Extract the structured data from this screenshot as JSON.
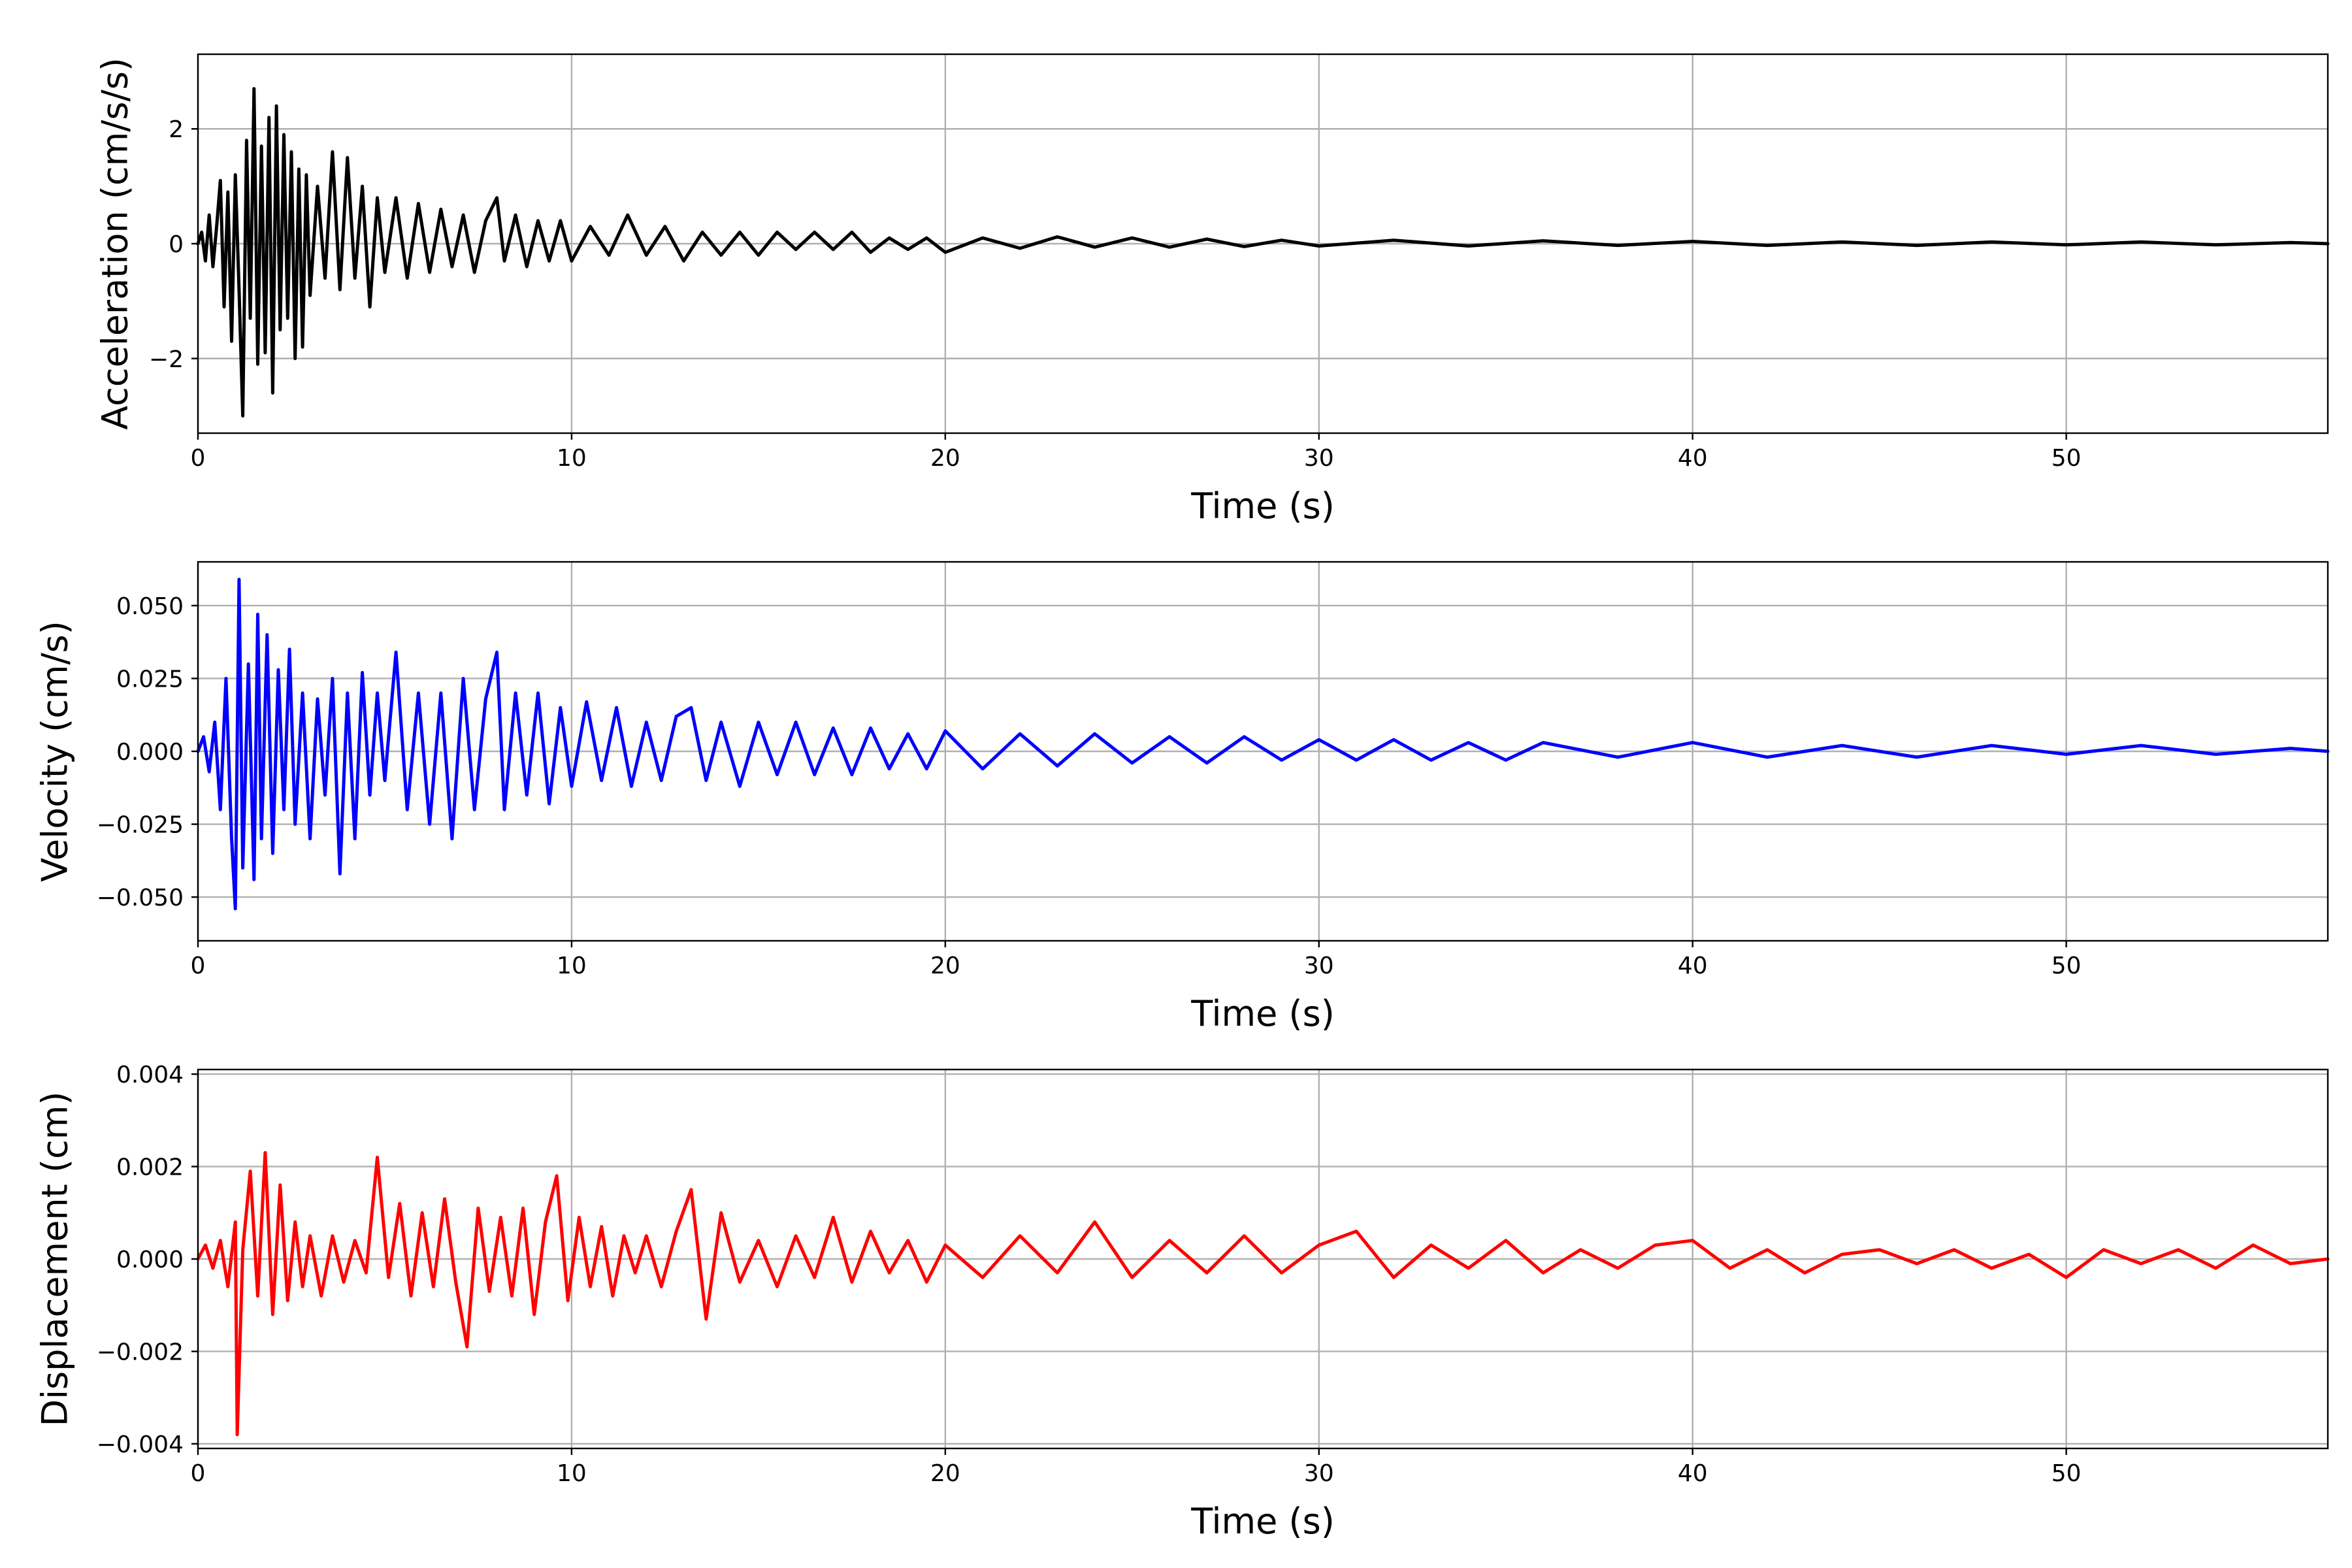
{
  "figure": {
    "background": "#ffffff",
    "grid_color": "#b0b0b0"
  },
  "chart_data": [
    {
      "type": "line",
      "xlabel": "Time (s)",
      "ylabel": "Acceleration (cm/s/s)",
      "xlim": [
        0,
        57
      ],
      "ylim": [
        -3.3,
        3.3
      ],
      "xticks": [
        0,
        10,
        20,
        30,
        40,
        50
      ],
      "xtick_labels": [
        "0",
        "10",
        "20",
        "30",
        "40",
        "50"
      ],
      "yticks": [
        -2,
        0,
        2
      ],
      "ytick_labels": [
        "−2",
        "0",
        "2"
      ],
      "grid": true,
      "series": [
        {
          "color": "#000000",
          "x": [
            0.0,
            0.1,
            0.2,
            0.3,
            0.4,
            0.5,
            0.6,
            0.7,
            0.8,
            0.9,
            1.0,
            1.1,
            1.2,
            1.3,
            1.4,
            1.5,
            1.6,
            1.7,
            1.8,
            1.9,
            2.0,
            2.1,
            2.2,
            2.3,
            2.4,
            2.5,
            2.6,
            2.7,
            2.8,
            2.9,
            3.0,
            3.2,
            3.4,
            3.6,
            3.8,
            4.0,
            4.2,
            4.4,
            4.6,
            4.8,
            5.0,
            5.3,
            5.6,
            5.9,
            6.2,
            6.5,
            6.8,
            7.1,
            7.4,
            7.7,
            8.0,
            8.2,
            8.5,
            8.8,
            9.1,
            9.4,
            9.7,
            10.0,
            10.5,
            11.0,
            11.5,
            12.0,
            12.5,
            13.0,
            13.5,
            14.0,
            14.5,
            15.0,
            15.5,
            16.0,
            16.5,
            17.0,
            17.5,
            18.0,
            18.5,
            19.0,
            19.5,
            20.0,
            21.0,
            22.0,
            23.0,
            24.0,
            25.0,
            26.0,
            27.0,
            28.0,
            29.0,
            30.0,
            32.0,
            34.0,
            36.0,
            38.0,
            40.0,
            42.0,
            44.0,
            46.0,
            48.0,
            50.0,
            52.0,
            54.0,
            56.0,
            57.0
          ],
          "y": [
            0.0,
            0.2,
            -0.3,
            0.5,
            -0.4,
            0.3,
            1.1,
            -1.1,
            0.9,
            -1.7,
            1.2,
            -0.8,
            -3.0,
            1.8,
            -1.3,
            2.7,
            -2.1,
            1.7,
            -1.9,
            2.2,
            -2.6,
            2.4,
            -1.5,
            1.9,
            -1.3,
            1.6,
            -2.0,
            1.3,
            -1.8,
            1.2,
            -0.9,
            1.0,
            -0.6,
            1.6,
            -0.8,
            1.5,
            -0.6,
            1.0,
            -1.1,
            0.8,
            -0.5,
            0.8,
            -0.6,
            0.7,
            -0.5,
            0.6,
            -0.4,
            0.5,
            -0.5,
            0.4,
            0.8,
            -0.3,
            0.5,
            -0.4,
            0.4,
            -0.3,
            0.4,
            -0.3,
            0.3,
            -0.2,
            0.5,
            -0.2,
            0.3,
            -0.3,
            0.2,
            -0.2,
            0.2,
            -0.2,
            0.2,
            -0.1,
            0.2,
            -0.1,
            0.2,
            -0.15,
            0.1,
            -0.1,
            0.1,
            -0.15,
            0.1,
            -0.08,
            0.12,
            -0.06,
            0.1,
            -0.06,
            0.08,
            -0.05,
            0.06,
            -0.04,
            0.06,
            -0.04,
            0.05,
            -0.03,
            0.04,
            -0.03,
            0.03,
            -0.03,
            0.03,
            -0.02,
            0.03,
            -0.02,
            0.02,
            0.0
          ]
        }
      ]
    },
    {
      "type": "line",
      "xlabel": "Time (s)",
      "ylabel": "Velocity (cm/s)",
      "xlim": [
        0,
        57
      ],
      "ylim": [
        -0.065,
        0.065
      ],
      "xticks": [
        0,
        10,
        20,
        30,
        40,
        50
      ],
      "xtick_labels": [
        "0",
        "10",
        "20",
        "30",
        "40",
        "50"
      ],
      "yticks": [
        -0.05,
        -0.025,
        0.0,
        0.025,
        0.05
      ],
      "ytick_labels": [
        "−0.050",
        "−0.025",
        "0.000",
        "0.025",
        "0.050"
      ],
      "grid": true,
      "series": [
        {
          "color": "#0000ff",
          "x": [
            0.0,
            0.15,
            0.3,
            0.45,
            0.6,
            0.75,
            0.9,
            1.0,
            1.1,
            1.2,
            1.35,
            1.5,
            1.6,
            1.7,
            1.85,
            2.0,
            2.15,
            2.3,
            2.45,
            2.6,
            2.8,
            3.0,
            3.2,
            3.4,
            3.6,
            3.8,
            4.0,
            4.2,
            4.4,
            4.6,
            4.8,
            5.0,
            5.3,
            5.6,
            5.9,
            6.2,
            6.5,
            6.8,
            7.1,
            7.4,
            7.7,
            8.0,
            8.2,
            8.5,
            8.8,
            9.1,
            9.4,
            9.7,
            10.0,
            10.4,
            10.8,
            11.2,
            11.6,
            12.0,
            12.4,
            12.8,
            13.2,
            13.6,
            14.0,
            14.5,
            15.0,
            15.5,
            16.0,
            16.5,
            17.0,
            17.5,
            18.0,
            18.5,
            19.0,
            19.5,
            20.0,
            21.0,
            22.0,
            23.0,
            24.0,
            25.0,
            26.0,
            27.0,
            28.0,
            29.0,
            30.0,
            31.0,
            32.0,
            33.0,
            34.0,
            35.0,
            36.0,
            38.0,
            40.0,
            42.0,
            44.0,
            46.0,
            48.0,
            50.0,
            52.0,
            54.0,
            56.0,
            57.0
          ],
          "y": [
            0.0,
            0.005,
            -0.007,
            0.01,
            -0.02,
            0.025,
            -0.03,
            -0.054,
            0.059,
            -0.04,
            0.03,
            -0.044,
            0.047,
            -0.03,
            0.04,
            -0.035,
            0.028,
            -0.02,
            0.035,
            -0.025,
            0.02,
            -0.03,
            0.018,
            -0.015,
            0.025,
            -0.042,
            0.02,
            -0.03,
            0.027,
            -0.015,
            0.02,
            -0.01,
            0.034,
            -0.02,
            0.02,
            -0.025,
            0.02,
            -0.03,
            0.025,
            -0.02,
            0.018,
            0.034,
            -0.02,
            0.02,
            -0.015,
            0.02,
            -0.018,
            0.015,
            -0.012,
            0.017,
            -0.01,
            0.015,
            -0.012,
            0.01,
            -0.01,
            0.012,
            0.015,
            -0.01,
            0.01,
            -0.012,
            0.01,
            -0.008,
            0.01,
            -0.008,
            0.008,
            -0.008,
            0.008,
            -0.006,
            0.006,
            -0.006,
            0.007,
            -0.006,
            0.006,
            -0.005,
            0.006,
            -0.004,
            0.005,
            -0.004,
            0.005,
            -0.003,
            0.004,
            -0.003,
            0.004,
            -0.003,
            0.003,
            -0.003,
            0.003,
            -0.002,
            0.003,
            -0.002,
            0.002,
            -0.002,
            0.002,
            -0.001,
            0.002,
            -0.001,
            0.001,
            0.0
          ]
        }
      ]
    },
    {
      "type": "line",
      "xlabel": "Time (s)",
      "ylabel": "Displacement (cm)",
      "xlim": [
        0,
        57
      ],
      "ylim": [
        -0.0041,
        0.0041
      ],
      "xticks": [
        0,
        10,
        20,
        30,
        40,
        50
      ],
      "xtick_labels": [
        "0",
        "10",
        "20",
        "30",
        "40",
        "50"
      ],
      "yticks": [
        -0.004,
        -0.002,
        0.0,
        0.002,
        0.004
      ],
      "ytick_labels": [
        "−0.004",
        "−0.002",
        "0.000",
        "0.002",
        "0.004"
      ],
      "grid": true,
      "series": [
        {
          "color": "#ff0000",
          "x": [
            0.0,
            0.2,
            0.4,
            0.6,
            0.8,
            1.0,
            1.05,
            1.2,
            1.4,
            1.6,
            1.8,
            2.0,
            2.2,
            2.4,
            2.6,
            2.8,
            3.0,
            3.3,
            3.6,
            3.9,
            4.2,
            4.5,
            4.8,
            5.1,
            5.4,
            5.7,
            6.0,
            6.3,
            6.6,
            6.9,
            7.2,
            7.5,
            7.8,
            8.1,
            8.4,
            8.7,
            9.0,
            9.3,
            9.6,
            9.9,
            10.2,
            10.5,
            10.8,
            11.1,
            11.4,
            11.7,
            12.0,
            12.4,
            12.8,
            13.2,
            13.6,
            14.0,
            14.5,
            15.0,
            15.5,
            16.0,
            16.5,
            17.0,
            17.5,
            18.0,
            18.5,
            19.0,
            19.5,
            20.0,
            21.0,
            22.0,
            23.0,
            24.0,
            25.0,
            26.0,
            27.0,
            28.0,
            29.0,
            30.0,
            31.0,
            32.0,
            33.0,
            34.0,
            35.0,
            36.0,
            37.0,
            38.0,
            39.0,
            40.0,
            41.0,
            42.0,
            43.0,
            44.0,
            45.0,
            46.0,
            47.0,
            48.0,
            49.0,
            50.0,
            51.0,
            52.0,
            53.0,
            54.0,
            55.0,
            56.0,
            57.0
          ],
          "y": [
            0.0,
            0.0003,
            -0.0002,
            0.0004,
            -0.0006,
            0.0008,
            -0.0038,
            0.0002,
            0.0019,
            -0.0008,
            0.0023,
            -0.0012,
            0.0016,
            -0.0009,
            0.0008,
            -0.0006,
            0.0005,
            -0.0008,
            0.0005,
            -0.0005,
            0.0004,
            -0.0003,
            0.0022,
            -0.0004,
            0.0012,
            -0.0008,
            0.001,
            -0.0006,
            0.0013,
            -0.0005,
            -0.0019,
            0.0011,
            -0.0007,
            0.0009,
            -0.0008,
            0.0011,
            -0.0012,
            0.0008,
            0.0018,
            -0.0009,
            0.0009,
            -0.0006,
            0.0007,
            -0.0008,
            0.0005,
            -0.0003,
            0.0005,
            -0.0006,
            0.0006,
            0.0015,
            -0.0013,
            0.001,
            -0.0005,
            0.0004,
            -0.0006,
            0.0005,
            -0.0004,
            0.0009,
            -0.0005,
            0.0006,
            -0.0003,
            0.0004,
            -0.0005,
            0.0003,
            -0.0004,
            0.0005,
            -0.0003,
            0.0008,
            -0.0004,
            0.0004,
            -0.0003,
            0.0005,
            -0.0003,
            0.0003,
            0.0006,
            -0.0004,
            0.0003,
            -0.0002,
            0.0004,
            -0.0003,
            0.0002,
            -0.0002,
            0.0003,
            0.0004,
            -0.0002,
            0.0002,
            -0.0003,
            0.0001,
            0.0002,
            -0.0001,
            0.0002,
            -0.0002,
            0.0001,
            -0.0004,
            0.0002,
            -0.0001,
            0.0002,
            -0.0002,
            0.0003,
            -0.0001,
            0.0
          ]
        }
      ]
    }
  ]
}
